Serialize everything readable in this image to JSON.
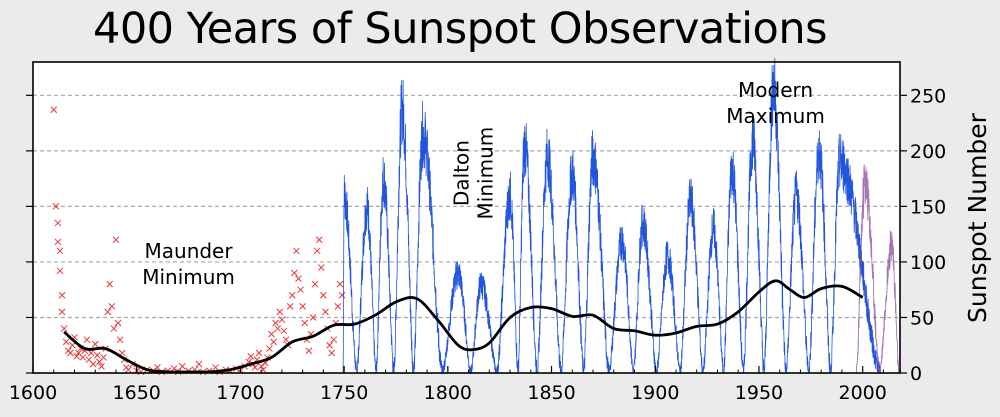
{
  "chart_data": {
    "type": "line",
    "title": "400 Years of Sunspot Observations",
    "xlabel": "",
    "ylabel": "Sunspot Number",
    "xlim": [
      1600,
      2018
    ],
    "ylim": [
      0,
      280
    ],
    "x_ticks": [
      1600,
      1650,
      1700,
      1750,
      1800,
      1850,
      1900,
      1950,
      2000
    ],
    "y_ticks": [
      0,
      50,
      100,
      150,
      200,
      250
    ],
    "grid": "horizontal dashed",
    "annotations": [
      {
        "text": "Maunder Minimum",
        "x": 1675,
        "y": 100
      },
      {
        "text": "Dalton Minimum",
        "x": 1810,
        "y": 180
      },
      {
        "text": "Modern Maximum",
        "x": 1958,
        "y": 245
      }
    ],
    "series": [
      {
        "kind": "early-telescopic-observations",
        "color": "#e8383a",
        "marker": "x",
        "points": [
          [
            1610,
            237
          ],
          [
            1611,
            150
          ],
          [
            1612,
            135
          ],
          [
            1612,
            118
          ],
          [
            1613,
            110
          ],
          [
            1613,
            92
          ],
          [
            1614,
            70
          ],
          [
            1614,
            55
          ],
          [
            1615,
            40
          ],
          [
            1616,
            28
          ],
          [
            1617,
            20
          ],
          [
            1618,
            18
          ],
          [
            1619,
            25
          ],
          [
            1620,
            32
          ],
          [
            1621,
            15
          ],
          [
            1622,
            18
          ],
          [
            1623,
            22
          ],
          [
            1624,
            14
          ],
          [
            1625,
            20
          ],
          [
            1626,
            30
          ],
          [
            1627,
            12
          ],
          [
            1628,
            18
          ],
          [
            1629,
            8
          ],
          [
            1630,
            26
          ],
          [
            1631,
            16
          ],
          [
            1632,
            10
          ],
          [
            1633,
            6
          ],
          [
            1634,
            14
          ],
          [
            1635,
            22
          ],
          [
            1636,
            55
          ],
          [
            1637,
            80
          ],
          [
            1638,
            60
          ],
          [
            1639,
            40
          ],
          [
            1640,
            120
          ],
          [
            1641,
            45
          ],
          [
            1642,
            30
          ],
          [
            1643,
            18
          ],
          [
            1644,
            12
          ],
          [
            1645,
            5
          ],
          [
            1646,
            3
          ],
          [
            1648,
            8
          ],
          [
            1650,
            2
          ],
          [
            1652,
            1
          ],
          [
            1655,
            3
          ],
          [
            1658,
            2
          ],
          [
            1660,
            5
          ],
          [
            1662,
            1
          ],
          [
            1665,
            2
          ],
          [
            1668,
            4
          ],
          [
            1670,
            1
          ],
          [
            1672,
            6
          ],
          [
            1675,
            2
          ],
          [
            1678,
            3
          ],
          [
            1680,
            8
          ],
          [
            1682,
            1
          ],
          [
            1685,
            2
          ],
          [
            1688,
            5
          ],
          [
            1690,
            1
          ],
          [
            1693,
            3
          ],
          [
            1695,
            2
          ],
          [
            1698,
            4
          ],
          [
            1700,
            3
          ],
          [
            1702,
            6
          ],
          [
            1704,
            10
          ],
          [
            1705,
            15
          ],
          [
            1706,
            8
          ],
          [
            1707,
            5
          ],
          [
            1708,
            12
          ],
          [
            1709,
            18
          ],
          [
            1710,
            6
          ],
          [
            1711,
            3
          ],
          [
            1712,
            9
          ],
          [
            1713,
            14
          ],
          [
            1714,
            22
          ],
          [
            1715,
            35
          ],
          [
            1716,
            28
          ],
          [
            1717,
            45
          ],
          [
            1718,
            40
          ],
          [
            1719,
            55
          ],
          [
            1720,
            48
          ],
          [
            1721,
            38
          ],
          [
            1722,
            30
          ],
          [
            1723,
            25
          ],
          [
            1724,
            60
          ],
          [
            1725,
            70
          ],
          [
            1726,
            90
          ],
          [
            1727,
            110
          ],
          [
            1728,
            85
          ],
          [
            1729,
            75
          ],
          [
            1730,
            60
          ],
          [
            1731,
            45
          ],
          [
            1732,
            30
          ],
          [
            1733,
            20
          ],
          [
            1734,
            35
          ],
          [
            1735,
            50
          ],
          [
            1736,
            80
          ],
          [
            1737,
            110
          ],
          [
            1738,
            120
          ],
          [
            1739,
            95
          ],
          [
            1740,
            70
          ],
          [
            1741,
            55
          ],
          [
            1742,
            40
          ],
          [
            1743,
            25
          ],
          [
            1744,
            18
          ],
          [
            1745,
            30
          ],
          [
            1746,
            45
          ],
          [
            1747,
            60
          ],
          [
            1748,
            80
          ],
          [
            1749,
            70
          ]
        ]
      },
      {
        "kind": "monthly-sunspot-number",
        "color": "#2255dd",
        "peaks": [
          [
            1750,
            160
          ],
          [
            1761,
            150
          ],
          [
            1769,
            175
          ],
          [
            1778,
            238
          ],
          [
            1788,
            215
          ],
          [
            1805,
            90
          ],
          [
            1816,
            80
          ],
          [
            1830,
            160
          ],
          [
            1837,
            205
          ],
          [
            1848,
            195
          ],
          [
            1860,
            180
          ],
          [
            1870,
            195
          ],
          [
            1884,
            120
          ],
          [
            1894,
            135
          ],
          [
            1906,
            105
          ],
          [
            1917,
            155
          ],
          [
            1928,
            130
          ],
          [
            1937,
            185
          ],
          [
            1947,
            210
          ],
          [
            1957,
            258
          ],
          [
            1968,
            160
          ],
          [
            1979,
            200
          ],
          [
            1989,
            190
          ],
          [
            2001,
            170
          ],
          [
            2014,
            115
          ]
        ]
      },
      {
        "kind": "recent-monthly-sunspot-number",
        "color": "#8a4a9a",
        "peaks": [
          [
            2001,
            170
          ],
          [
            2014,
            115
          ]
        ]
      },
      {
        "kind": "smoothed-trend",
        "color": "#000000",
        "points": [
          [
            1615,
            37
          ],
          [
            1625,
            22
          ],
          [
            1635,
            22
          ],
          [
            1645,
            12
          ],
          [
            1655,
            3
          ],
          [
            1665,
            1
          ],
          [
            1675,
            1
          ],
          [
            1685,
            1
          ],
          [
            1695,
            3
          ],
          [
            1705,
            8
          ],
          [
            1715,
            14
          ],
          [
            1725,
            28
          ],
          [
            1735,
            33
          ],
          [
            1745,
            43
          ],
          [
            1755,
            44
          ],
          [
            1765,
            52
          ],
          [
            1775,
            64
          ],
          [
            1785,
            67
          ],
          [
            1795,
            48
          ],
          [
            1805,
            25
          ],
          [
            1812,
            21
          ],
          [
            1820,
            27
          ],
          [
            1830,
            50
          ],
          [
            1840,
            59
          ],
          [
            1850,
            58
          ],
          [
            1860,
            51
          ],
          [
            1870,
            52
          ],
          [
            1880,
            40
          ],
          [
            1890,
            38
          ],
          [
            1900,
            34
          ],
          [
            1910,
            36
          ],
          [
            1920,
            42
          ],
          [
            1930,
            44
          ],
          [
            1940,
            55
          ],
          [
            1950,
            73
          ],
          [
            1958,
            83
          ],
          [
            1965,
            75
          ],
          [
            1972,
            68
          ],
          [
            1980,
            76
          ],
          [
            1990,
            78
          ],
          [
            2000,
            68
          ]
        ]
      }
    ]
  }
}
